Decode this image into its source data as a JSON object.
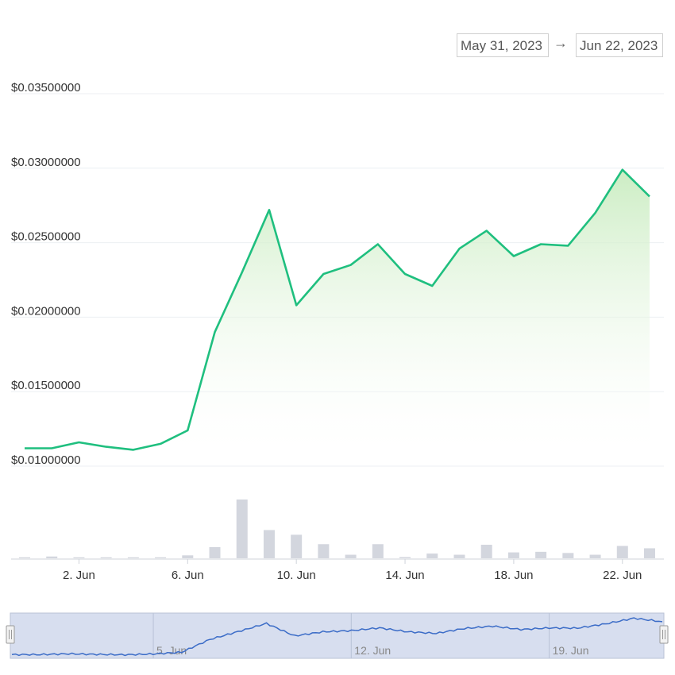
{
  "date_range": {
    "from": "May 31, 2023",
    "separator": "→",
    "to": "Jun 22, 2023"
  },
  "colors": {
    "line": "#1fbf7f",
    "area_top": "#c9ecc0",
    "bar": "#d3d6de",
    "navigator_fill": "#d7deef",
    "navigator_line": "#3b6cc7"
  },
  "chart_data": {
    "type": "line",
    "x": [
      "2023-05-31",
      "2023-06-01",
      "2023-06-02",
      "2023-06-03",
      "2023-06-04",
      "2023-06-05",
      "2023-06-06",
      "2023-06-07",
      "2023-06-08",
      "2023-06-09",
      "2023-06-10",
      "2023-06-11",
      "2023-06-12",
      "2023-06-13",
      "2023-06-14",
      "2023-06-15",
      "2023-06-16",
      "2023-06-17",
      "2023-06-18",
      "2023-06-19",
      "2023-06-20",
      "2023-06-21",
      "2023-06-22",
      "2023-06-23"
    ],
    "price": [
      0.0112,
      0.0112,
      0.0116,
      0.0113,
      0.0111,
      0.0115,
      0.0124,
      0.019,
      0.023,
      0.0272,
      0.0208,
      0.0229,
      0.0235,
      0.0249,
      0.0229,
      0.0221,
      0.0246,
      0.0258,
      0.0241,
      0.0249,
      0.0248,
      0.027,
      0.0299,
      0.0281
    ],
    "volume": [
      0,
      0.03,
      0,
      0,
      0,
      0,
      0.05,
      0.19,
      1.0,
      0.48,
      0.4,
      0.24,
      0.06,
      0.24,
      0.02,
      0.08,
      0.06,
      0.23,
      0.1,
      0.11,
      0.09,
      0.06,
      0.21,
      0.17
    ],
    "y_ticks": [
      "$0.01000000",
      "$0.01500000",
      "$0.02000000",
      "$0.02500000",
      "$0.03000000",
      "$0.03500000"
    ],
    "y_tick_values": [
      0.01,
      0.015,
      0.02,
      0.025,
      0.03,
      0.035
    ],
    "ylim": [
      0.01,
      0.035
    ],
    "x_ticks": [
      "2. Jun",
      "6. Jun",
      "10. Jun",
      "14. Jun",
      "18. Jun",
      "22. Jun"
    ],
    "x_tick_dates": [
      "2023-06-02",
      "2023-06-06",
      "2023-06-10",
      "2023-06-14",
      "2023-06-18",
      "2023-06-22"
    ],
    "navigator_ticks": [
      "5. Jun",
      "12. Jun",
      "19. Jun"
    ],
    "navigator_tick_dates": [
      "2023-06-05",
      "2023-06-12",
      "2023-06-19"
    ],
    "grid": true
  }
}
